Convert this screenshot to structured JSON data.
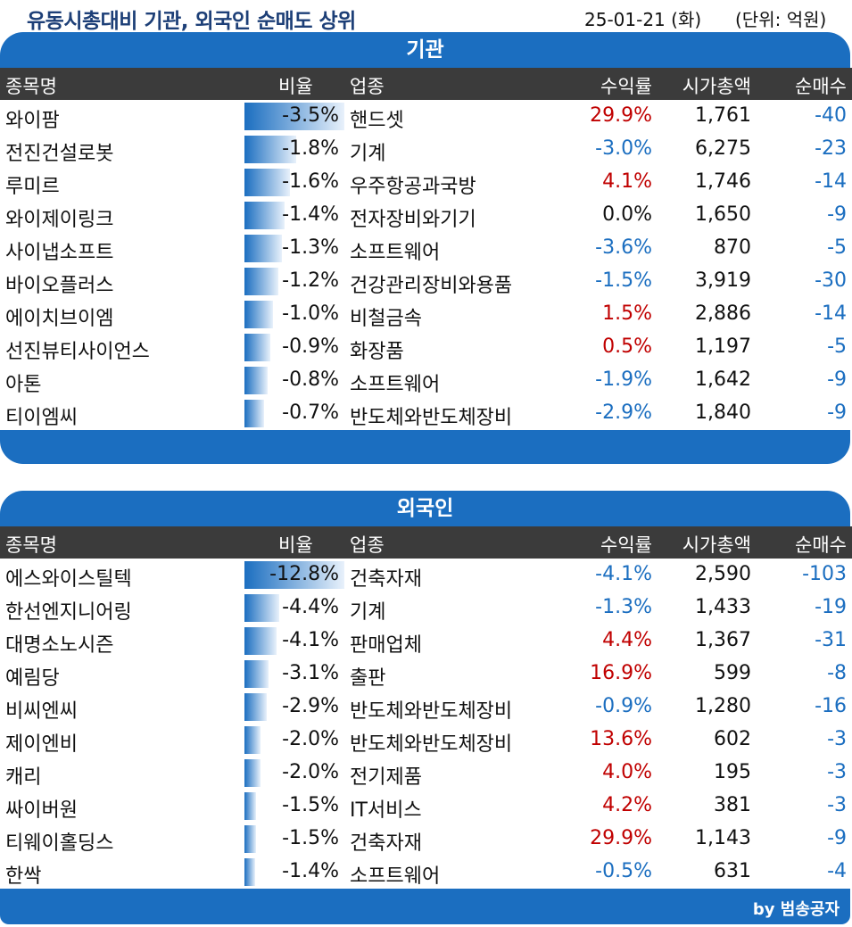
{
  "title": "유동시총대비 기관, 외국인 순매도 상위",
  "date": "25-01-21 (화)",
  "unit": "(단위: 억원)",
  "columns": {
    "name": "종목명",
    "ratio": "비율",
    "sector": "업종",
    "return": "수익률",
    "cap": "시가총액",
    "net": "순매수"
  },
  "sections": [
    {
      "header": "기관",
      "rows": [
        {
          "name": "와이팜",
          "ratio": "-3.5%",
          "ratio_value": 3.5,
          "sector": "핸드셋",
          "return": "29.9%",
          "sign": "pos",
          "cap": "1,761",
          "net": "-40"
        },
        {
          "name": "전진건설로봇",
          "ratio": "-1.8%",
          "ratio_value": 1.8,
          "sector": "기계",
          "return": "-3.0%",
          "sign": "neg",
          "cap": "6,275",
          "net": "-23"
        },
        {
          "name": "루미르",
          "ratio": "-1.6%",
          "ratio_value": 1.6,
          "sector": "우주항공과국방",
          "return": "4.1%",
          "sign": "pos",
          "cap": "1,746",
          "net": "-14"
        },
        {
          "name": "와이제이링크",
          "ratio": "-1.4%",
          "ratio_value": 1.4,
          "sector": "전자장비와기기",
          "return": "0.0%",
          "sign": "zero",
          "cap": "1,650",
          "net": "-9"
        },
        {
          "name": "사이냅소프트",
          "ratio": "-1.3%",
          "ratio_value": 1.3,
          "sector": "소프트웨어",
          "return": "-3.6%",
          "sign": "neg",
          "cap": "870",
          "net": "-5"
        },
        {
          "name": "바이오플러스",
          "ratio": "-1.2%",
          "ratio_value": 1.2,
          "sector": "건강관리장비와용품",
          "return": "-1.5%",
          "sign": "neg",
          "cap": "3,919",
          "net": "-30"
        },
        {
          "name": "에이치브이엠",
          "ratio": "-1.0%",
          "ratio_value": 1.0,
          "sector": "비철금속",
          "return": "1.5%",
          "sign": "pos",
          "cap": "2,886",
          "net": "-14"
        },
        {
          "name": "선진뷰티사이언스",
          "ratio": "-0.9%",
          "ratio_value": 0.9,
          "sector": "화장품",
          "return": "0.5%",
          "sign": "pos",
          "cap": "1,197",
          "net": "-5"
        },
        {
          "name": "아톤",
          "ratio": "-0.8%",
          "ratio_value": 0.8,
          "sector": "소프트웨어",
          "return": "-1.9%",
          "sign": "neg",
          "cap": "1,642",
          "net": "-9"
        },
        {
          "name": "티이엠씨",
          "ratio": "-0.7%",
          "ratio_value": 0.7,
          "sector": "반도체와반도체장비",
          "return": "-2.9%",
          "sign": "neg",
          "cap": "1,840",
          "net": "-9"
        }
      ]
    },
    {
      "header": "외국인",
      "rows": [
        {
          "name": "에스와이스틸텍",
          "ratio": "-12.8%",
          "ratio_value": 12.8,
          "sector": "건축자재",
          "return": "-4.1%",
          "sign": "neg",
          "cap": "2,590",
          "net": "-103"
        },
        {
          "name": "한선엔지니어링",
          "ratio": "-4.4%",
          "ratio_value": 4.4,
          "sector": "기계",
          "return": "-1.3%",
          "sign": "neg",
          "cap": "1,433",
          "net": "-19"
        },
        {
          "name": "대명소노시즌",
          "ratio": "-4.1%",
          "ratio_value": 4.1,
          "sector": "판매업체",
          "return": "4.4%",
          "sign": "pos",
          "cap": "1,367",
          "net": "-31"
        },
        {
          "name": "예림당",
          "ratio": "-3.1%",
          "ratio_value": 3.1,
          "sector": "출판",
          "return": "16.9%",
          "sign": "pos",
          "cap": "599",
          "net": "-8"
        },
        {
          "name": "비씨엔씨",
          "ratio": "-2.9%",
          "ratio_value": 2.9,
          "sector": "반도체와반도체장비",
          "return": "-0.9%",
          "sign": "neg",
          "cap": "1,280",
          "net": "-16"
        },
        {
          "name": "제이엔비",
          "ratio": "-2.0%",
          "ratio_value": 2.0,
          "sector": "반도체와반도체장비",
          "return": "13.6%",
          "sign": "pos",
          "cap": "602",
          "net": "-3"
        },
        {
          "name": "캐리",
          "ratio": "-2.0%",
          "ratio_value": 2.0,
          "sector": "전기제품",
          "return": "4.0%",
          "sign": "pos",
          "cap": "195",
          "net": "-3"
        },
        {
          "name": "싸이버원",
          "ratio": "-1.5%",
          "ratio_value": 1.5,
          "sector": "IT서비스",
          "return": "4.2%",
          "sign": "pos",
          "cap": "381",
          "net": "-3"
        },
        {
          "name": "티웨이홀딩스",
          "ratio": "-1.5%",
          "ratio_value": 1.5,
          "sector": "건축자재",
          "return": "29.9%",
          "sign": "pos",
          "cap": "1,143",
          "net": "-9"
        },
        {
          "name": "한싹",
          "ratio": "-1.4%",
          "ratio_value": 1.4,
          "sector": "소프트웨어",
          "return": "-0.5%",
          "sign": "neg",
          "cap": "631",
          "net": "-4"
        }
      ]
    }
  ],
  "credit": "by 범송공자",
  "colors": {
    "header_blue": "#1b6ec0",
    "column_header": "#3b3b3b",
    "title": "#1d3f77",
    "positive": "#c00000",
    "negative": "#1b6ec0"
  }
}
